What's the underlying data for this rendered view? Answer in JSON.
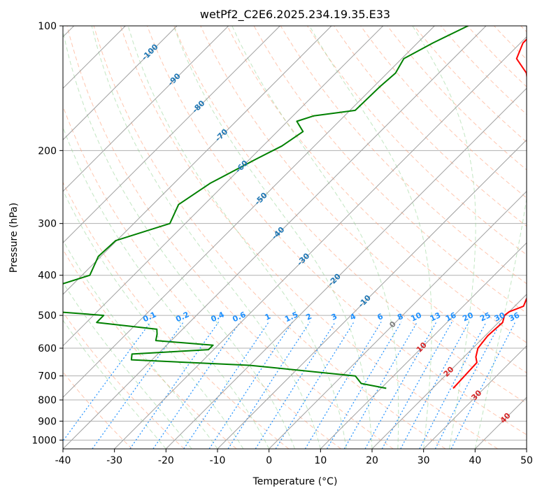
{
  "chart_data": {
    "type": "line",
    "subtype": "skew-T log-p diagram",
    "title": "wetPf2_C2E6.2025.234.19.35.E33",
    "xlabel": "Temperature (°C)",
    "ylabel": "Pressure (hPa)",
    "xlim": [
      -40,
      50
    ],
    "ylim": [
      1050,
      100
    ],
    "y_scale": "log",
    "x_ticks": [
      -40,
      -30,
      -20,
      -10,
      0,
      10,
      20,
      30,
      40,
      50
    ],
    "y_ticks": [
      100,
      200,
      300,
      400,
      500,
      600,
      700,
      800,
      900,
      1000
    ],
    "grid": "horizontal at pressure ticks",
    "series": [
      {
        "role": "temperature",
        "color": "#ff0000",
        "points": [
          {
            "p": 750,
            "t": 24.0
          },
          {
            "p": 700,
            "t": 23.8
          },
          {
            "p": 650,
            "t": 23.6
          },
          {
            "p": 630,
            "t": 22.3
          },
          {
            "p": 600,
            "t": 21.0
          },
          {
            "p": 560,
            "t": 20.5
          },
          {
            "p": 520,
            "t": 20.8
          },
          {
            "p": 500,
            "t": 19.8
          },
          {
            "p": 490,
            "t": 20.0
          },
          {
            "p": 475,
            "t": 21.7
          },
          {
            "p": 455,
            "t": 20.8
          },
          {
            "p": 430,
            "t": 20.8
          },
          {
            "p": 400,
            "t": 19.1
          },
          {
            "p": 370,
            "t": 16.6
          },
          {
            "p": 350,
            "t": 15.2
          },
          {
            "p": 300,
            "t": 9.6
          },
          {
            "p": 250,
            "t": 2.8
          },
          {
            "p": 200,
            "t": -6.0
          },
          {
            "p": 170,
            "t": -12.3
          },
          {
            "p": 150,
            "t": -17.3
          },
          {
            "p": 130,
            "t": -23.0
          },
          {
            "p": 120,
            "t": -27.7
          },
          {
            "p": 110,
            "t": -29.5
          },
          {
            "p": 100,
            "t": -29.5
          }
        ]
      },
      {
        "role": "dewpoint",
        "color": "#008000",
        "points": [
          {
            "p": 750,
            "t": 11.0
          },
          {
            "p": 730,
            "t": 5.2
          },
          {
            "p": 700,
            "t": 2.6
          },
          {
            "p": 660,
            "t": -20.0
          },
          {
            "p": 640,
            "t": -44.0
          },
          {
            "p": 620,
            "t": -45.0
          },
          {
            "p": 605,
            "t": -31.0
          },
          {
            "p": 590,
            "t": -31.0
          },
          {
            "p": 575,
            "t": -43.0
          },
          {
            "p": 555,
            "t": -44.0
          },
          {
            "p": 540,
            "t": -45.0
          },
          {
            "p": 520,
            "t": -58.0
          },
          {
            "p": 500,
            "t": -58.0
          },
          {
            "p": 490,
            "t": -68.0
          },
          {
            "p": 430,
            "t": -74.0
          },
          {
            "p": 400,
            "t": -68.5
          },
          {
            "p": 360,
            "t": -70.5
          },
          {
            "p": 330,
            "t": -70.2
          },
          {
            "p": 300,
            "t": -63.0
          },
          {
            "p": 270,
            "t": -65.0
          },
          {
            "p": 240,
            "t": -63.0
          },
          {
            "p": 210,
            "t": -58.8
          },
          {
            "p": 195,
            "t": -56.3
          },
          {
            "p": 180,
            "t": -55.0
          },
          {
            "p": 170,
            "t": -58.2
          },
          {
            "p": 165,
            "t": -56.0
          },
          {
            "p": 160,
            "t": -49.0
          },
          {
            "p": 140,
            "t": -48.8
          },
          {
            "p": 130,
            "t": -48.4
          },
          {
            "p": 120,
            "t": -49.6
          },
          {
            "p": 110,
            "t": -47.0
          },
          {
            "p": 100,
            "t": -43.5
          }
        ]
      }
    ],
    "isotherm_labels": [
      {
        "text": "-100",
        "t": -100,
        "p": 116
      },
      {
        "text": "-90",
        "t": -90,
        "p": 135
      },
      {
        "text": "-80",
        "t": -80,
        "p": 157
      },
      {
        "text": "-70",
        "t": -70,
        "p": 184
      },
      {
        "text": "-60",
        "t": -60,
        "p": 219
      },
      {
        "text": "-50",
        "t": -50,
        "p": 262
      },
      {
        "text": "-40",
        "t": -40,
        "p": 317
      },
      {
        "text": "-30",
        "t": -30,
        "p": 367
      },
      {
        "text": "-20",
        "t": -20,
        "p": 411
      },
      {
        "text": "-10",
        "t": -10,
        "p": 463
      },
      {
        "text": "0",
        "t": 0,
        "p": 527
      },
      {
        "text": "10",
        "t": 10,
        "p": 598
      },
      {
        "text": "20",
        "t": 20,
        "p": 685
      },
      {
        "text": "30",
        "t": 30,
        "p": 781
      },
      {
        "text": "40",
        "t": 40,
        "p": 886
      }
    ],
    "mixing_ratio_labels": [
      "0.1",
      "0.2",
      "0.4",
      "0.6",
      "1",
      "1.5",
      "2",
      "3",
      "4",
      "6",
      "8",
      "10",
      "13",
      "16",
      "20",
      "25",
      "30",
      "36"
    ]
  }
}
